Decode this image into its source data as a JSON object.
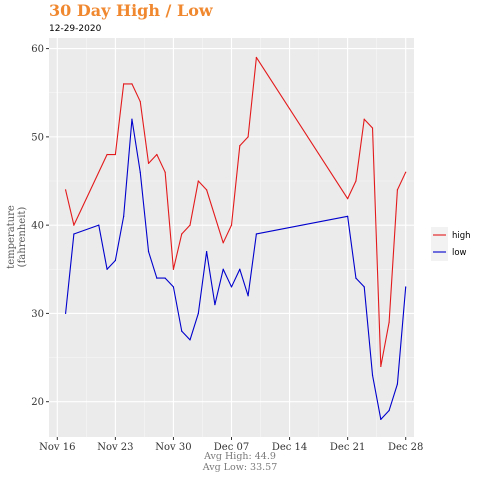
{
  "title": "30 Day High / Low",
  "subtitle": "12-29-2020",
  "footer": {
    "avg_high": "Avg High: 44.9",
    "avg_low": "Avg Low: 33.57"
  },
  "chart_data": {
    "type": "line",
    "xlabel": "",
    "ylabel": [
      "temperature",
      "(fahrenheit)"
    ],
    "x_range": [
      "2020-11-15",
      "2020-12-29"
    ],
    "y_range": [
      16,
      61.2
    ],
    "x_ticks": [
      {
        "date": "2020-11-16",
        "label": "Nov 16"
      },
      {
        "date": "2020-11-23",
        "label": "Nov 23"
      },
      {
        "date": "2020-11-30",
        "label": "Nov 30"
      },
      {
        "date": "2020-12-07",
        "label": "Dec 07"
      },
      {
        "date": "2020-12-14",
        "label": "Dec 14"
      },
      {
        "date": "2020-12-21",
        "label": "Dec 21"
      },
      {
        "date": "2020-12-28",
        "label": "Dec 28"
      }
    ],
    "y_ticks": [
      20,
      30,
      40,
      50,
      60
    ],
    "grid": true,
    "legend_position": "right",
    "series": [
      {
        "name": "high",
        "color": "#e31a1c",
        "points": [
          [
            "2020-11-17",
            44
          ],
          [
            "2020-11-18",
            40
          ],
          [
            "2020-11-22",
            48
          ],
          [
            "2020-11-23",
            48
          ],
          [
            "2020-11-24",
            56
          ],
          [
            "2020-11-25",
            56
          ],
          [
            "2020-11-26",
            54
          ],
          [
            "2020-11-27",
            47
          ],
          [
            "2020-11-28",
            48
          ],
          [
            "2020-11-29",
            46
          ],
          [
            "2020-11-30",
            35
          ],
          [
            "2020-12-01",
            39
          ],
          [
            "2020-12-02",
            40
          ],
          [
            "2020-12-03",
            45
          ],
          [
            "2020-12-04",
            44
          ],
          [
            "2020-12-06",
            38
          ],
          [
            "2020-12-07",
            40
          ],
          [
            "2020-12-08",
            49
          ],
          [
            "2020-12-09",
            50
          ],
          [
            "2020-12-10",
            59
          ],
          [
            "2020-12-21",
            43
          ],
          [
            "2020-12-22",
            45
          ],
          [
            "2020-12-23",
            52
          ],
          [
            "2020-12-24",
            51
          ],
          [
            "2020-12-25",
            24
          ],
          [
            "2020-12-26",
            29
          ],
          [
            "2020-12-27",
            44
          ],
          [
            "2020-12-28",
            46
          ]
        ]
      },
      {
        "name": "low",
        "color": "#0000cd",
        "points": [
          [
            "2020-11-17",
            30
          ],
          [
            "2020-11-18",
            39
          ],
          [
            "2020-11-21",
            40
          ],
          [
            "2020-11-22",
            35
          ],
          [
            "2020-11-23",
            36
          ],
          [
            "2020-11-24",
            41
          ],
          [
            "2020-11-25",
            52
          ],
          [
            "2020-11-26",
            46
          ],
          [
            "2020-11-27",
            37
          ],
          [
            "2020-11-28",
            34
          ],
          [
            "2020-11-29",
            34
          ],
          [
            "2020-11-30",
            33
          ],
          [
            "2020-12-01",
            28
          ],
          [
            "2020-12-02",
            27
          ],
          [
            "2020-12-03",
            30
          ],
          [
            "2020-12-04",
            37
          ],
          [
            "2020-12-05",
            31
          ],
          [
            "2020-12-06",
            35
          ],
          [
            "2020-12-07",
            33
          ],
          [
            "2020-12-08",
            35
          ],
          [
            "2020-12-09",
            32
          ],
          [
            "2020-12-10",
            39
          ],
          [
            "2020-12-21",
            41
          ],
          [
            "2020-12-22",
            34
          ],
          [
            "2020-12-23",
            33
          ],
          [
            "2020-12-24",
            23
          ],
          [
            "2020-12-25",
            18
          ],
          [
            "2020-12-26",
            19
          ],
          [
            "2020-12-27",
            22
          ],
          [
            "2020-12-28",
            33
          ]
        ]
      }
    ]
  }
}
